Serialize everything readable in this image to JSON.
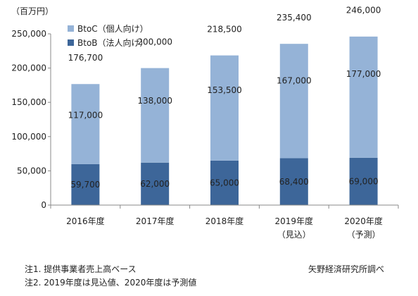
{
  "chart_data": {
    "type": "bar",
    "stacked": true,
    "unit_label": "（百万円）",
    "categories": [
      "2016年度",
      "2017年度",
      "2018年度",
      "2019年度",
      "2020年度"
    ],
    "category_sublabels": [
      "",
      "",
      "",
      "（見込）",
      "（予測）"
    ],
    "series": [
      {
        "name": "BtoB（法人向け）",
        "values": [
          59700,
          62000,
          65000,
          68400,
          69000
        ],
        "color": "#3d6699"
      },
      {
        "name": "BtoC（個人向け）",
        "values": [
          117000,
          138000,
          153500,
          167000,
          177000
        ],
        "color": "#95b3d7"
      }
    ],
    "totals": [
      176700,
      200000,
      218500,
      235400,
      246000
    ],
    "ylim": [
      0,
      250000
    ],
    "yticks": [
      0,
      50000,
      100000,
      150000,
      200000,
      250000
    ],
    "ytick_labels": [
      "0",
      "50,000",
      "100,000",
      "150,000",
      "200,000",
      "250,000"
    ],
    "btob_labels": [
      "59,700",
      "62,000",
      "65,000",
      "68,400",
      "69,000"
    ],
    "btoc_labels": [
      "117,000",
      "138,000",
      "153,500",
      "167,000",
      "177,000"
    ],
    "total_labels": [
      "176,700",
      "200,000",
      "218,500",
      "235,400",
      "246,000"
    ],
    "legend_position": "top-left",
    "grid": false
  },
  "notes": {
    "note1": "注1. 提供事業者売上高ベース",
    "note2": "注2. 2019年度は見込値、2020年度は予測値",
    "source": "矢野経済研究所調べ"
  }
}
